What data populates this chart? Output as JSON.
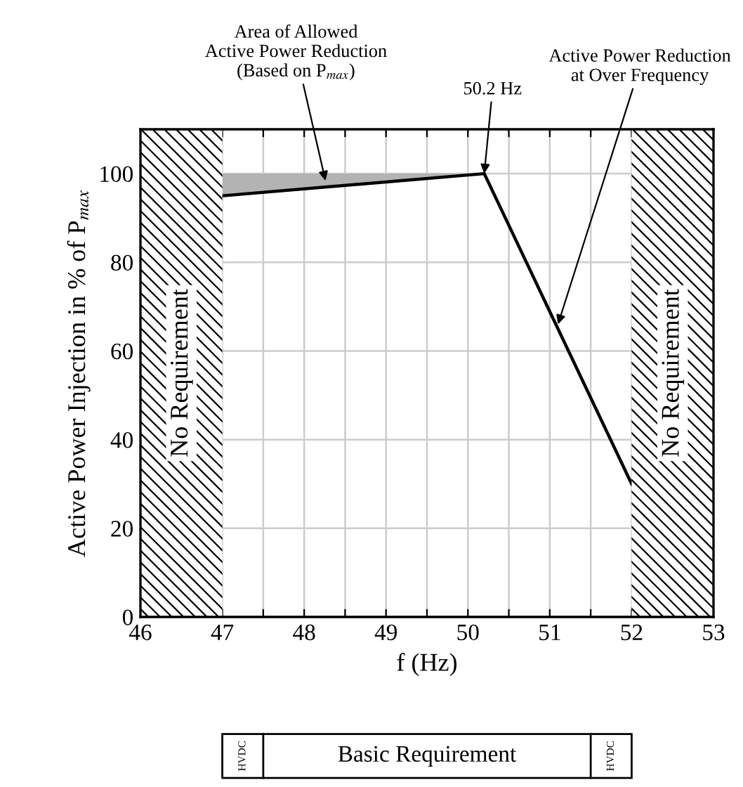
{
  "chart_data": {
    "type": "line",
    "xlabel": "f (Hz)",
    "ylabel": "Active Power Injection in % of P$_{max}$",
    "series": [
      {
        "color": "#000000",
        "x": [
          47,
          50.2,
          52
        ],
        "values": [
          95,
          100,
          30
        ]
      },
      {
        "type": "area",
        "color": "#b3b3b3",
        "x": [
          47,
          50.2
        ],
        "values": [
          100,
          100
        ]
      }
    ],
    "xlim": [
      46,
      53
    ],
    "xticks": [
      46,
      {
        "value": 46.5,
        "label": null
      },
      47,
      {
        "value": 47.5,
        "label": null
      },
      48,
      {
        "value": 48.5,
        "label": null
      },
      49,
      {
        "value": 49.5,
        "label": null
      },
      50,
      {
        "value": 50.5,
        "label": null
      },
      51,
      {
        "value": 51.5,
        "label": null
      },
      52,
      {
        "value": 52.5,
        "label": null
      },
      53
    ],
    "ylim": [
      0,
      110
    ],
    "yticks": [
      0,
      20,
      40,
      60,
      80,
      100
    ],
    "grid": true,
    "legend": false,
    "bands": [
      {
        "axis": "x",
        "from": 46,
        "to": 47,
        "label": "No Requirement"
      },
      {
        "axis": "x",
        "from": 52,
        "to": 53,
        "label": "No Requirement"
      }
    ],
    "annotations": [
      {
        "text": "Area of Allowed\nActive Power Reduction\n(Based on P$_{max}$)",
        "x": 48.26,
        "y": 98.4
      },
      {
        "text": "50.2 Hz",
        "x": 50.2,
        "y": 100
      },
      {
        "text": "Active Power Reduction\nat Over Frequency",
        "x": 51.1,
        "y": 66
      },
      "HVDC",
      "Basic Requirement",
      "HVDC"
    ]
  }
}
